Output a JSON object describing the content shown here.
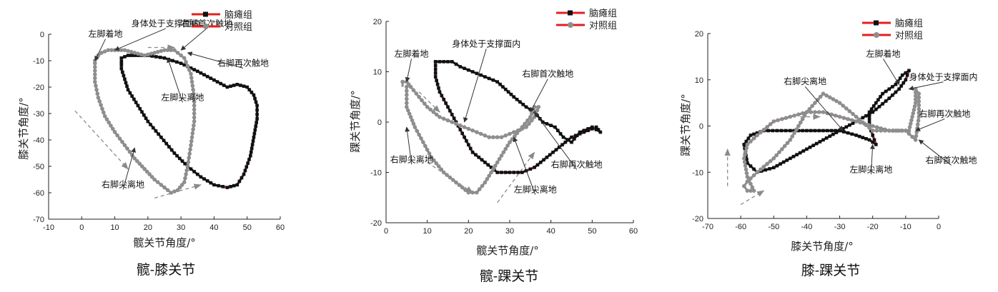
{
  "colors": {
    "cp": "#111111",
    "ctrl": "#8e8e8e",
    "dash": "#e02020",
    "arrow": "#8a8a8a"
  },
  "chart_data": [
    {
      "type": "line",
      "caption": "髋-膝关节",
      "xlabel": "髋关节角度/°",
      "ylabel": "膝关节角度/°",
      "xlim": [
        -10,
        60
      ],
      "ylim": [
        -70,
        0
      ],
      "xticks": [
        -10,
        0,
        10,
        20,
        30,
        40,
        50,
        60
      ],
      "yticks": [
        0,
        -10,
        -20,
        -30,
        -40,
        -50,
        -60,
        -70
      ],
      "legend": {
        "position": "top-right",
        "entries": [
          {
            "label": "脑瘫组",
            "series": "cp"
          },
          {
            "label": "对照组",
            "series": "ctrl"
          }
        ]
      },
      "series": [
        {
          "key": "cp",
          "name": "脑瘫组",
          "marker": "square",
          "red_dash_fraction": 0.45,
          "x": [
            12,
            12,
            14,
            17,
            20,
            24,
            28,
            32,
            36,
            40,
            44,
            47,
            49,
            51,
            52,
            53,
            53,
            52,
            50,
            47,
            44,
            41,
            38,
            35,
            30,
            25,
            20,
            17,
            14,
            12,
            12,
            12
          ],
          "y": [
            -9,
            -13,
            -21,
            -27,
            -33,
            -39,
            -45,
            -50,
            -54,
            -57,
            -58,
            -57,
            -53,
            -46,
            -39,
            -32,
            -27,
            -23,
            -20,
            -19,
            -20,
            -18,
            -16,
            -14,
            -11,
            -9,
            -8,
            -8,
            -8,
            -9,
            -11,
            -9
          ]
        },
        {
          "key": "ctrl",
          "name": "对照组",
          "marker": "circle",
          "red_dash_fraction": 0.55,
          "x": [
            4,
            4,
            5,
            7,
            10,
            13,
            16,
            19,
            22,
            25,
            27,
            29,
            31,
            32,
            33,
            34,
            34,
            33,
            31,
            28,
            25,
            22,
            19,
            16,
            13,
            10,
            8,
            6,
            5,
            4,
            4
          ],
          "y": [
            -11,
            -18,
            -24,
            -31,
            -37,
            -42,
            -47,
            -51,
            -55,
            -58,
            -60,
            -59,
            -56,
            -50,
            -42,
            -33,
            -24,
            -15,
            -9,
            -6,
            -6,
            -7,
            -8,
            -7,
            -6,
            -6,
            -6,
            -7,
            -8,
            -10,
            -11
          ]
        }
      ],
      "annotations": [
        {
          "text": "左脚着地",
          "x": 2,
          "y": -1,
          "to": [
            4,
            -10
          ]
        },
        {
          "text": "身体处于支撑面内",
          "x": 15,
          "y": 3,
          "to": [
            10,
            -6
          ]
        },
        {
          "text": "右脚首次触地",
          "x": 30,
          "y": 3,
          "to": [
            30,
            -6
          ]
        },
        {
          "text": "右脚再次触地",
          "x": 41,
          "y": -12,
          "to": [
            32,
            -7
          ]
        },
        {
          "text": "左脚尖离地",
          "x": 24,
          "y": -25,
          "to": [
            26,
            -9
          ]
        },
        {
          "text": "右脚尖离地",
          "x": 6,
          "y": -58,
          "to": [
            16,
            -43
          ]
        }
      ],
      "flow_arrows": [
        {
          "x": [
            7,
            7
          ],
          "y": [
            -31,
            -31
          ],
          "from": [
            -2,
            -29
          ],
          "to": [
            14,
            -51
          ]
        },
        {
          "from": [
            22,
            -62
          ],
          "to": [
            36,
            -57
          ]
        },
        {
          "from": [
            20,
            -5
          ],
          "to": [
            28,
            -5
          ]
        }
      ]
    },
    {
      "type": "line",
      "caption": "髋-踝关节",
      "xlabel": "髋关节角度/°",
      "ylabel": "踝关节角度/°",
      "xlim": [
        0,
        60
      ],
      "ylim": [
        -20,
        20
      ],
      "xticks": [
        0,
        10,
        20,
        30,
        40,
        50,
        60
      ],
      "yticks": [
        20,
        10,
        0,
        -10,
        -20
      ],
      "legend": {
        "position": "top-right",
        "entries": [
          {
            "label": "脑瘫组",
            "series": "cp"
          },
          {
            "label": "对照组",
            "series": "ctrl"
          }
        ]
      },
      "series": [
        {
          "key": "cp",
          "name": "脑瘫组",
          "marker": "square",
          "red_dash_fraction": 0.5,
          "x": [
            12,
            12,
            13,
            15,
            17,
            19,
            21,
            24,
            27,
            31,
            33,
            36,
            39,
            42,
            45,
            48,
            51,
            52,
            50,
            47,
            45,
            43,
            41,
            38,
            36,
            34,
            31,
            27,
            24,
            21,
            18,
            16,
            14,
            12,
            12
          ],
          "y": [
            12,
            9,
            6,
            3,
            0,
            -3,
            -6,
            -8,
            -10,
            -10,
            -10,
            -9,
            -7,
            -5,
            -3,
            -2,
            -1,
            -2,
            -1,
            -2,
            -4,
            -3,
            -1,
            0,
            2,
            3,
            5,
            8,
            9,
            10,
            11,
            12,
            12,
            12,
            12
          ]
        },
        {
          "key": "ctrl",
          "name": "对照组",
          "marker": "circle",
          "red_dash_fraction": 0.55,
          "x": [
            5,
            5,
            7,
            9,
            11,
            14,
            17,
            20,
            22,
            24,
            27,
            30,
            33,
            35,
            36,
            37,
            36,
            34,
            31,
            28,
            25,
            22,
            19,
            16,
            13,
            10,
            8,
            6,
            5,
            4,
            4
          ],
          "y": [
            7,
            3,
            -1,
            -4,
            -7,
            -10,
            -12,
            -14,
            -14,
            -12,
            -8,
            -4,
            -1,
            1,
            3,
            3,
            1,
            -1,
            -2,
            -3,
            -3,
            -2,
            -1,
            0,
            1,
            3,
            5,
            7,
            8,
            8,
            7
          ]
        }
      ],
      "annotations": [
        {
          "text": "左脚着地",
          "x": 2,
          "y": 13,
          "to": [
            5,
            8
          ]
        },
        {
          "text": "身体处于支撑面内",
          "x": 16,
          "y": 15,
          "to": [
            19,
            0
          ]
        },
        {
          "text": "右脚首次触地",
          "x": 33,
          "y": 9,
          "to": [
            35,
            2
          ]
        },
        {
          "text": "右脚再次触地",
          "x": 40,
          "y": -9,
          "to": [
            36,
            2
          ]
        },
        {
          "text": "右脚尖离地",
          "x": 1,
          "y": -8,
          "to": [
            5,
            -1
          ]
        },
        {
          "text": "左脚尖离地",
          "x": 31,
          "y": -14,
          "to": [
            31,
            -3
          ]
        }
      ],
      "flow_arrows": [
        {
          "from": [
            8,
            6
          ],
          "to": [
            13,
            2
          ]
        },
        {
          "from": [
            10,
            -8
          ],
          "to": [
            21,
            -14
          ]
        },
        {
          "from": [
            27,
            -16
          ],
          "to": [
            36,
            -6
          ]
        }
      ]
    },
    {
      "type": "line",
      "caption": "膝-踝关节",
      "xlabel": "膝关节角度/°",
      "ylabel": "踝关节角度/°",
      "xlim": [
        -70,
        0
      ],
      "ylim": [
        -20,
        20
      ],
      "xticks": [
        -70,
        -60,
        -50,
        -40,
        -30,
        -20,
        -10,
        0
      ],
      "yticks": [
        20,
        10,
        0,
        -10,
        -20
      ],
      "legend": {
        "position": "top-right",
        "entries": [
          {
            "label": "脑瘫组",
            "series": "cp"
          },
          {
            "label": "对照组",
            "series": "ctrl"
          }
        ]
      },
      "series": [
        {
          "key": "cp",
          "name": "脑瘫组",
          "marker": "square",
          "red_dash_fraction": 0.45,
          "x": [
            -19,
            -20,
            -21,
            -21,
            -19,
            -17,
            -15,
            -13,
            -11,
            -9,
            -10,
            -12,
            -15,
            -20,
            -25,
            -30,
            -35,
            -40,
            -45,
            -50,
            -55,
            -58,
            -59,
            -57,
            -53,
            -49,
            -45,
            -40,
            -35,
            -30,
            -25,
            -21,
            -19
          ],
          "y": [
            -4,
            -2,
            0,
            3,
            5,
            7,
            8,
            9,
            11,
            12,
            10,
            8,
            6,
            3,
            1,
            -1,
            -3,
            -5,
            -7,
            -9,
            -10,
            -8,
            -4,
            -2,
            -1,
            -1,
            -1,
            -1,
            -1,
            -1,
            -2,
            -3,
            -4
          ]
        },
        {
          "key": "ctrl",
          "name": "对照组",
          "marker": "circle",
          "red_dash_fraction": 0.5,
          "x": [
            -56,
            -58,
            -59,
            -58,
            -55,
            -50,
            -45,
            -40,
            -35,
            -30,
            -25,
            -20,
            -15,
            -12,
            -9,
            -8,
            -7,
            -7,
            -6,
            -6,
            -7,
            -10,
            -15,
            -20,
            -25,
            -30,
            -35,
            -40,
            -45,
            -50,
            -55,
            -58,
            -59,
            -58,
            -56
          ],
          "y": [
            -14,
            -11,
            -7,
            -4,
            -2,
            1,
            2,
            3,
            3,
            2,
            1,
            0,
            -1,
            -1,
            -1,
            2,
            5,
            8,
            7,
            2,
            -3,
            -1,
            -1,
            -1,
            2,
            5,
            7,
            3,
            -3,
            -7,
            -10,
            -12,
            -13,
            -14,
            -14
          ]
        }
      ],
      "annotations": [
        {
          "text": "左脚着地",
          "x": -22,
          "y": 15,
          "to": [
            -12,
            9
          ]
        },
        {
          "text": "身体处于支撑面内",
          "x": -9,
          "y": 10,
          "to": [
            -9,
            8
          ]
        },
        {
          "text": "右脚再次触地",
          "x": -6,
          "y": 2,
          "to": [
            -7,
            -1
          ]
        },
        {
          "text": "右脚尖离地",
          "x": -47,
          "y": 9,
          "to": [
            -29,
            -1
          ]
        },
        {
          "text": "左脚尖离地",
          "x": -27,
          "y": -10,
          "to": [
            -20,
            -4
          ]
        },
        {
          "text": "右脚首次触地",
          "x": -4,
          "y": -8,
          "to": [
            -6,
            -3
          ]
        }
      ],
      "flow_arrows": [
        {
          "from": [
            -64,
            -13
          ],
          "to": [
            -64,
            -5
          ]
        },
        {
          "from": [
            -60,
            -17
          ],
          "to": [
            -53,
            -14
          ]
        },
        {
          "from": [
            -42,
            2
          ],
          "to": [
            -36,
            2
          ]
        }
      ]
    }
  ]
}
